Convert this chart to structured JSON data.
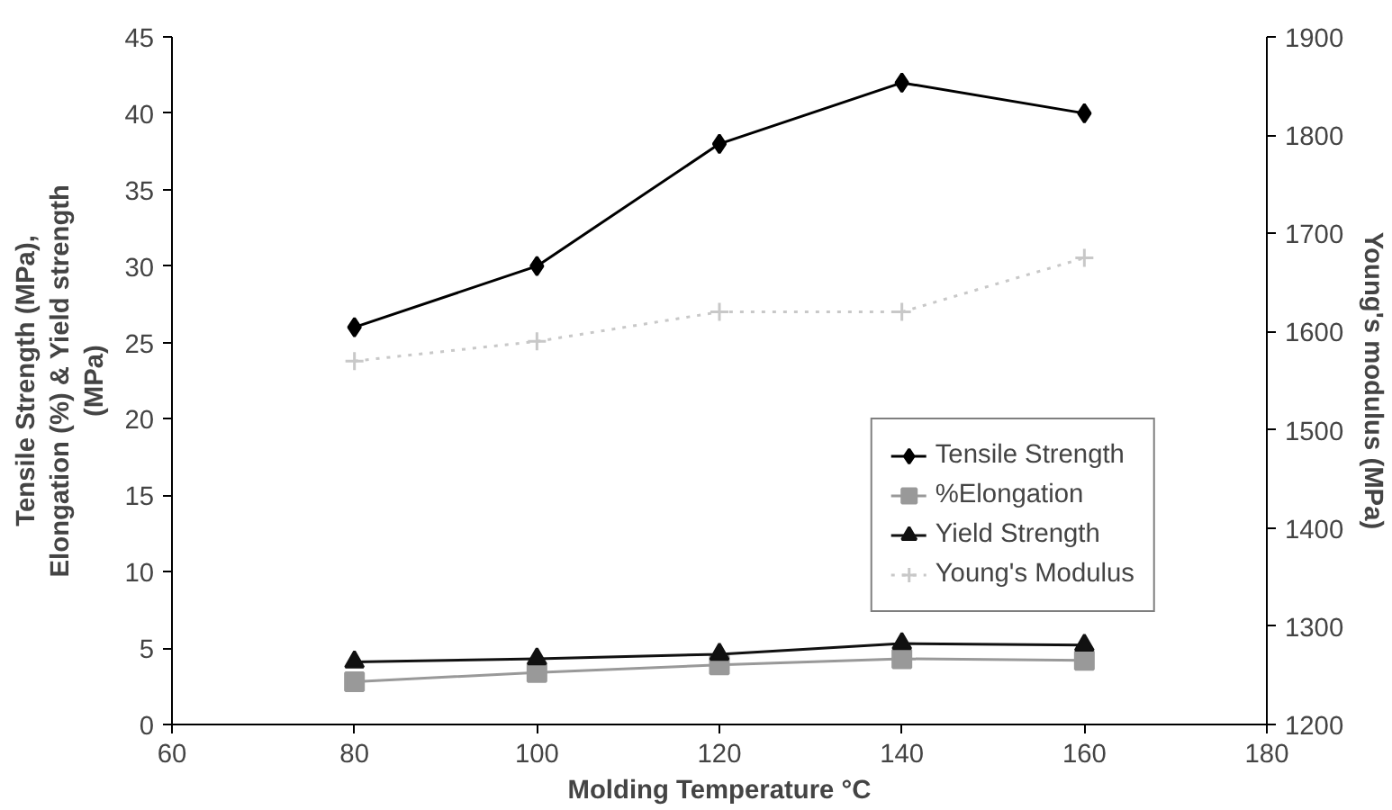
{
  "chart_data": {
    "type": "line",
    "xlabel": "Molding Temperature °C",
    "ylabel": "Tensile Strength (MPa),\nElongation (%) & Yield strength\n(MPa)",
    "y2label": "Young's modulus (MPa)",
    "x": [
      80,
      100,
      120,
      140,
      160
    ],
    "xlim": [
      60,
      180
    ],
    "xticks": [
      60,
      80,
      100,
      120,
      140,
      160,
      180
    ],
    "ylim": [
      0,
      45
    ],
    "yticks": [
      0,
      5,
      10,
      15,
      20,
      25,
      30,
      35,
      40,
      45
    ],
    "y2lim": [
      1200,
      1900
    ],
    "y2ticks": [
      1200,
      1300,
      1400,
      1500,
      1600,
      1700,
      1800,
      1900
    ],
    "grid": false,
    "legend": "right",
    "series": [
      {
        "name": "Tensile Strength",
        "color": "#000000",
        "marker": "diamond",
        "values": [
          26,
          30,
          38,
          42,
          40
        ]
      },
      {
        "name": "%Elongation",
        "color": "#999999",
        "marker": "square",
        "values": [
          2.8,
          3.4,
          3.9,
          4.3,
          4.2
        ]
      },
      {
        "name": "Yield Strength",
        "color": "#111111",
        "marker": "triangle",
        "values": [
          4.1,
          4.3,
          4.6,
          5.3,
          5.2
        ]
      },
      {
        "name": "Young's Modulus",
        "color": "#c8c8c8",
        "marker": "cross",
        "line_style": "dotted",
        "axis": "y2",
        "values": [
          1570,
          1590,
          1620,
          1620,
          1675
        ]
      }
    ]
  }
}
